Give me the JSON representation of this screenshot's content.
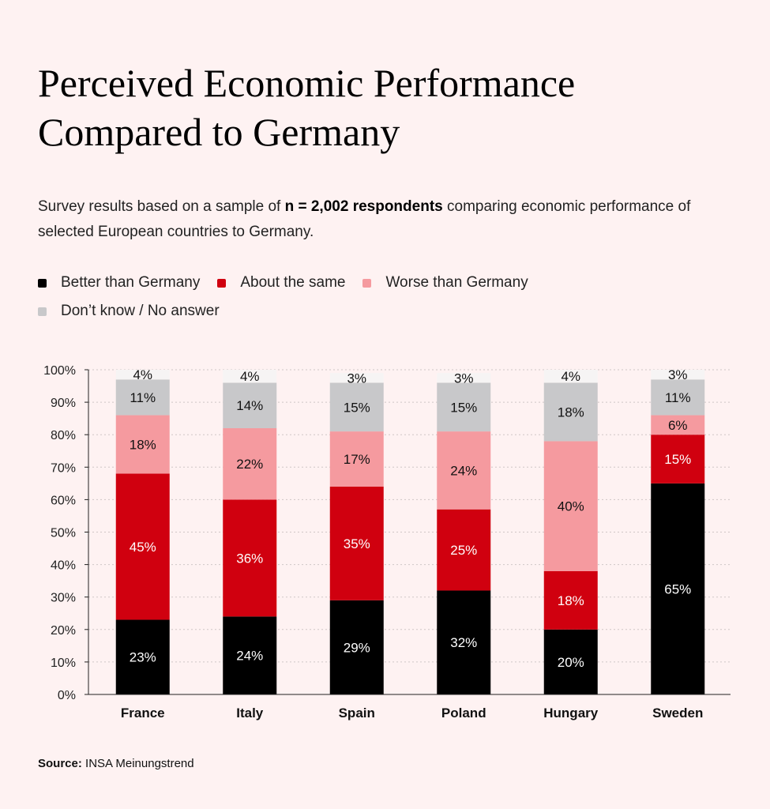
{
  "title_line1": "Perceived Economic Performance",
  "title_line2": "Compared to Germany",
  "subtitle": {
    "pre": "Survey results based on a sample of ",
    "bold": "n = 2,002 respondents",
    "post": " comparing economic performance of selected European countries to Germany."
  },
  "source": {
    "label": "Source:",
    "text": " INSA Meinungstrend"
  },
  "chart_data": {
    "type": "bar",
    "stacked": true,
    "title": "Perceived Economic Performance Compared to Germany",
    "xlabel": "",
    "ylabel": "",
    "ylim": [
      0,
      100
    ],
    "yticks": [
      "0%",
      "10%",
      "20%",
      "30%",
      "40%",
      "50%",
      "60%",
      "70%",
      "80%",
      "90%",
      "100%"
    ],
    "grid": true,
    "legend_position": "top-left",
    "categories": [
      "France",
      "Italy",
      "Spain",
      "Poland",
      "Hungary",
      "Sweden"
    ],
    "series": [
      {
        "name": "Better than Germany",
        "color": "#000000",
        "label_color": "#ffffff",
        "values": [
          23,
          24,
          29,
          32,
          20,
          65
        ]
      },
      {
        "name": "About the same",
        "color": "#d0000f",
        "label_color": "#ffffff",
        "values": [
          45,
          36,
          35,
          25,
          18,
          15
        ]
      },
      {
        "name": "Worse than Germany",
        "color": "#f59a9f",
        "label_color": "#111111",
        "values": [
          18,
          22,
          17,
          24,
          40,
          6
        ]
      },
      {
        "name": "Don’t know / No answer",
        "color": "#c8c8ca",
        "label_color": "#111111",
        "values": [
          11,
          14,
          15,
          15,
          18,
          11
        ]
      },
      {
        "name": "",
        "color": "#f6f4f4",
        "label_color": "#111111",
        "in_legend": false,
        "values": [
          4,
          4,
          3,
          3,
          4,
          3
        ]
      }
    ]
  }
}
